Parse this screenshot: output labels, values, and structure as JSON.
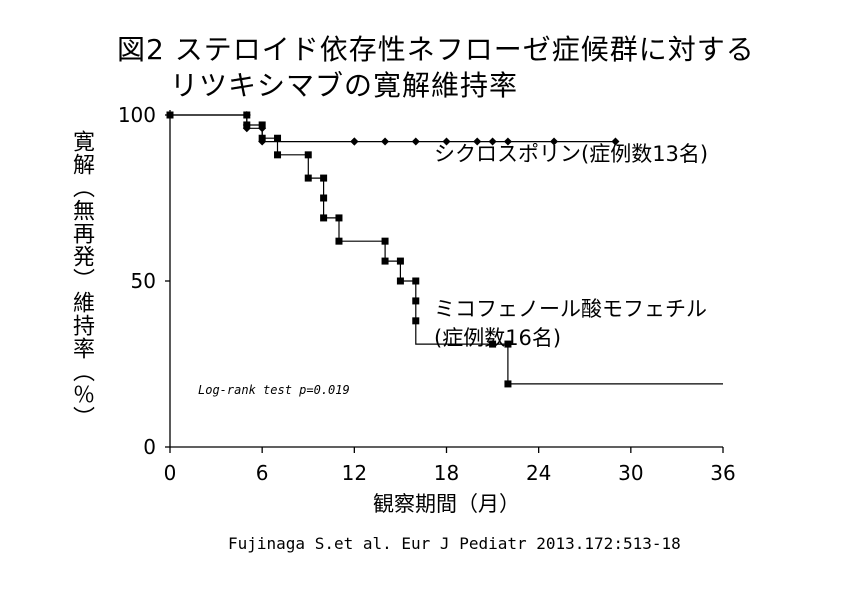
{
  "chart_data": {
    "type": "line",
    "title_line1": "図2 ステロイド依存性ネフローゼ症候群に対する",
    "title_line2": "リツキシマブの寛解維持率",
    "ylabel": "寛解（無再発）維持率（％）",
    "xlabel": "観察期間（月）",
    "xlim": [
      0,
      36
    ],
    "ylim": [
      0,
      100
    ],
    "x_ticks": [
      0,
      6,
      12,
      18,
      24,
      30,
      36
    ],
    "y_ticks": [
      0,
      50,
      100
    ],
    "annotation": "Log-rank test p=0.019",
    "step": "post",
    "series": [
      {
        "name": "シクロスポリン",
        "label_line1": "シクロスポリン(症例数13名)",
        "marker": "diamond",
        "points": [
          [
            0,
            100
          ],
          [
            5,
            100
          ],
          [
            5,
            97
          ],
          [
            5,
            96
          ],
          [
            6,
            96
          ],
          [
            6,
            92
          ],
          [
            12,
            92
          ],
          [
            12,
            92
          ],
          [
            12,
            92
          ],
          [
            14,
            92
          ],
          [
            16,
            92
          ],
          [
            18,
            92
          ],
          [
            20,
            92
          ],
          [
            21,
            92
          ],
          [
            22,
            92
          ],
          [
            25,
            92
          ],
          [
            29,
            92
          ]
        ],
        "km_steps": [
          [
            0,
            100
          ],
          [
            5,
            100
          ],
          [
            5,
            96
          ],
          [
            6,
            96
          ],
          [
            6,
            92
          ],
          [
            12,
            92
          ],
          [
            12,
            92
          ],
          [
            29,
            92
          ]
        ]
      },
      {
        "name": "ミコフェノール酸モフェチル",
        "label_line1": "ミコフェノール酸モフェチル",
        "label_line2": "(症例数16名)",
        "marker": "square",
        "points": [
          [
            0,
            100
          ],
          [
            5,
            100
          ],
          [
            5,
            97
          ],
          [
            6,
            97
          ],
          [
            6,
            93
          ],
          [
            7,
            93
          ],
          [
            7,
            88
          ],
          [
            9,
            88
          ],
          [
            9,
            81
          ],
          [
            10,
            81
          ],
          [
            10,
            75
          ],
          [
            10,
            69
          ],
          [
            11,
            69
          ],
          [
            11,
            62
          ],
          [
            14,
            62
          ],
          [
            14,
            56
          ],
          [
            15,
            56
          ],
          [
            15,
            50
          ],
          [
            16,
            50
          ],
          [
            16,
            44
          ],
          [
            16,
            38
          ],
          [
            21,
            31
          ],
          [
            22,
            31
          ],
          [
            22,
            19
          ]
        ],
        "km_steps": [
          [
            0,
            100
          ],
          [
            5,
            100
          ],
          [
            5,
            97
          ],
          [
            6,
            97
          ],
          [
            6,
            93
          ],
          [
            7,
            93
          ],
          [
            7,
            88
          ],
          [
            9,
            88
          ],
          [
            9,
            81
          ],
          [
            10,
            81
          ],
          [
            10,
            69
          ],
          [
            11,
            69
          ],
          [
            11,
            62
          ],
          [
            14,
            62
          ],
          [
            14,
            56
          ],
          [
            15,
            56
          ],
          [
            15,
            50
          ],
          [
            16,
            50
          ],
          [
            16,
            31
          ],
          [
            22,
            31
          ],
          [
            22,
            19
          ],
          [
            36,
            19
          ]
        ]
      }
    ]
  },
  "citation": "Fujinaga S.et al. Eur J Pediatr 2013.172:513-18"
}
